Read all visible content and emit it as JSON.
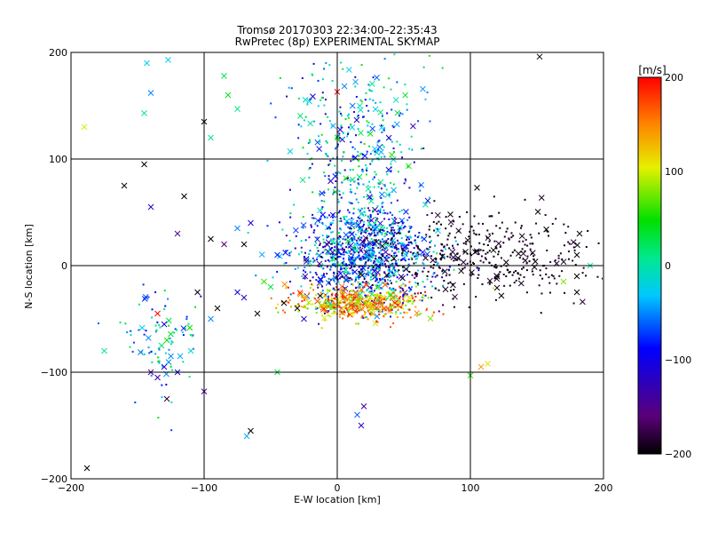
{
  "chart_data": {
    "type": "scatter",
    "title": "Tromsø 20170303 22:34:00–22:35:43",
    "subtitle": "RwPretec (8p) EXPERIMENTAL SKYMAP",
    "xlabel": "E-W location [km]",
    "ylabel": "N-S location [km]",
    "xlim": [
      -200,
      200
    ],
    "ylim": [
      -200,
      200
    ],
    "xticks": [
      -200,
      -100,
      0,
      100,
      200
    ],
    "yticks": [
      -200,
      -100,
      0,
      100,
      200
    ],
    "xtick_labels": [
      "−200",
      "−100",
      "0",
      "100",
      "200"
    ],
    "ytick_labels": [
      "−200",
      "−100",
      "0",
      "100",
      "200"
    ],
    "grid": true,
    "markers": [
      "dot",
      "x"
    ],
    "colorbar": {
      "label": "[m/s]",
      "range": [
        -200,
        200
      ],
      "ticks": [
        200,
        100,
        0,
        -100,
        -200
      ],
      "tick_labels": [
        "200",
        "100",
        "0",
        "−100",
        "−200"
      ],
      "colormap": "rainbow (black-purple-blue-cyan-green-yellow-red)"
    },
    "clusters": [
      {
        "name": "central",
        "center": [
          20,
          10
        ],
        "spread": [
          25,
          25
        ],
        "velocity_range": [
          -150,
          20
        ]
      },
      {
        "name": "southern band",
        "center": [
          15,
          -35
        ],
        "spread": [
          25,
          8
        ],
        "velocity_range": [
          60,
          200
        ]
      },
      {
        "name": "east black region",
        "center": [
          110,
          10
        ],
        "spread": [
          50,
          20
        ],
        "velocity_range": [
          -200,
          -180
        ]
      },
      {
        "name": "northern scatter",
        "center": [
          15,
          110
        ],
        "spread": [
          25,
          40
        ],
        "velocity_range": [
          -130,
          60
        ]
      },
      {
        "name": "western scatter",
        "center": [
          -130,
          -70
        ],
        "spread": [
          15,
          25
        ],
        "velocity_range": [
          -100,
          50
        ]
      }
    ],
    "points": [
      {
        "x": -188,
        "y": -190,
        "v": -200,
        "m": "x"
      },
      {
        "x": -190,
        "y": 130,
        "v": 100,
        "m": "x"
      },
      {
        "x": -143,
        "y": 190,
        "v": -30,
        "m": "x"
      },
      {
        "x": -127,
        "y": 193,
        "v": -30,
        "m": "x"
      },
      {
        "x": -140,
        "y": 162,
        "v": -50,
        "m": "x"
      },
      {
        "x": -145,
        "y": 143,
        "v": 0,
        "m": "x"
      },
      {
        "x": -100,
        "y": 135,
        "v": -200,
        "m": "x"
      },
      {
        "x": -85,
        "y": 178,
        "v": 30,
        "m": "x"
      },
      {
        "x": -82,
        "y": 160,
        "v": 40,
        "m": "x"
      },
      {
        "x": -75,
        "y": 147,
        "v": 10,
        "m": "x"
      },
      {
        "x": -95,
        "y": 120,
        "v": 0,
        "m": "x"
      },
      {
        "x": -160,
        "y": 75,
        "v": -200,
        "m": "x"
      },
      {
        "x": -145,
        "y": 95,
        "v": -200,
        "m": "x"
      },
      {
        "x": -115,
        "y": 65,
        "v": -200,
        "m": "x"
      },
      {
        "x": -120,
        "y": 30,
        "v": -150,
        "m": "x"
      },
      {
        "x": -140,
        "y": 55,
        "v": -120,
        "m": "x"
      },
      {
        "x": -95,
        "y": 25,
        "v": -200,
        "m": "x"
      },
      {
        "x": -85,
        "y": 20,
        "v": -150,
        "m": "x"
      },
      {
        "x": -75,
        "y": 35,
        "v": -50,
        "m": "x"
      },
      {
        "x": -70,
        "y": 20,
        "v": -200,
        "m": "x"
      },
      {
        "x": -65,
        "y": 40,
        "v": -100,
        "m": "x"
      },
      {
        "x": -105,
        "y": -25,
        "v": -200,
        "m": "x"
      },
      {
        "x": -95,
        "y": -50,
        "v": -50,
        "m": "x"
      },
      {
        "x": -90,
        "y": -40,
        "v": -200,
        "m": "x"
      },
      {
        "x": -75,
        "y": -25,
        "v": -100,
        "m": "x"
      },
      {
        "x": -70,
        "y": -30,
        "v": -120,
        "m": "x"
      },
      {
        "x": -60,
        "y": -45,
        "v": -200,
        "m": "x"
      },
      {
        "x": -55,
        "y": -15,
        "v": 60,
        "m": "x"
      },
      {
        "x": -50,
        "y": -20,
        "v": 30,
        "m": "x"
      },
      {
        "x": -45,
        "y": 10,
        "v": -80,
        "m": "x"
      },
      {
        "x": -40,
        "y": -35,
        "v": -200,
        "m": "x"
      },
      {
        "x": -30,
        "y": -40,
        "v": -200,
        "m": "x"
      },
      {
        "x": -25,
        "y": -50,
        "v": -120,
        "m": "x"
      },
      {
        "x": -135,
        "y": -45,
        "v": 200,
        "m": "x"
      },
      {
        "x": -130,
        "y": -55,
        "v": -100,
        "m": "x"
      },
      {
        "x": -128,
        "y": -70,
        "v": 50,
        "m": "x"
      },
      {
        "x": -125,
        "y": -85,
        "v": -50,
        "m": "x"
      },
      {
        "x": -132,
        "y": -75,
        "v": 20,
        "m": "x"
      },
      {
        "x": -175,
        "y": -80,
        "v": 0,
        "m": "x"
      },
      {
        "x": -140,
        "y": -100,
        "v": -150,
        "m": "x"
      },
      {
        "x": -135,
        "y": -105,
        "v": -130,
        "m": "x"
      },
      {
        "x": -130,
        "y": -95,
        "v": -110,
        "m": "x"
      },
      {
        "x": -118,
        "y": -85,
        "v": -40,
        "m": "x"
      },
      {
        "x": -110,
        "y": -80,
        "v": -20,
        "m": "x"
      },
      {
        "x": -120,
        "y": -100,
        "v": -100,
        "m": "x"
      },
      {
        "x": -128,
        "y": -125,
        "v": -180,
        "m": "x"
      },
      {
        "x": -100,
        "y": -118,
        "v": -140,
        "m": "x"
      },
      {
        "x": -65,
        "y": -155,
        "v": -200,
        "m": "x"
      },
      {
        "x": -68,
        "y": -160,
        "v": -40,
        "m": "x"
      },
      {
        "x": -45,
        "y": -100,
        "v": 30,
        "m": "x"
      },
      {
        "x": 0,
        "y": 163,
        "v": 200,
        "m": "x"
      },
      {
        "x": 15,
        "y": -140,
        "v": -60,
        "m": "x"
      },
      {
        "x": 20,
        "y": -132,
        "v": -140,
        "m": "x"
      },
      {
        "x": 18,
        "y": -150,
        "v": -120,
        "m": "x"
      },
      {
        "x": 100,
        "y": -103,
        "v": 60,
        "m": "x"
      },
      {
        "x": 108,
        "y": -95,
        "v": 140,
        "m": "x"
      },
      {
        "x": 113,
        "y": -92,
        "v": 110,
        "m": "x"
      },
      {
        "x": 152,
        "y": 196,
        "v": -200,
        "m": "x"
      },
      {
        "x": 105,
        "y": 73,
        "v": -200,
        "m": "x"
      },
      {
        "x": 85,
        "y": 48,
        "v": -200,
        "m": "x"
      },
      {
        "x": 180,
        "y": -10,
        "v": -200,
        "m": "x"
      },
      {
        "x": 170,
        "y": -15,
        "v": 80,
        "m": "x"
      },
      {
        "x": 180,
        "y": 10,
        "v": -200,
        "m": "x"
      },
      {
        "x": 182,
        "y": 30,
        "v": -200,
        "m": "x"
      },
      {
        "x": 190,
        "y": 0,
        "v": 0,
        "m": "x"
      },
      {
        "x": 180,
        "y": -25,
        "v": -200,
        "m": "x"
      }
    ]
  }
}
